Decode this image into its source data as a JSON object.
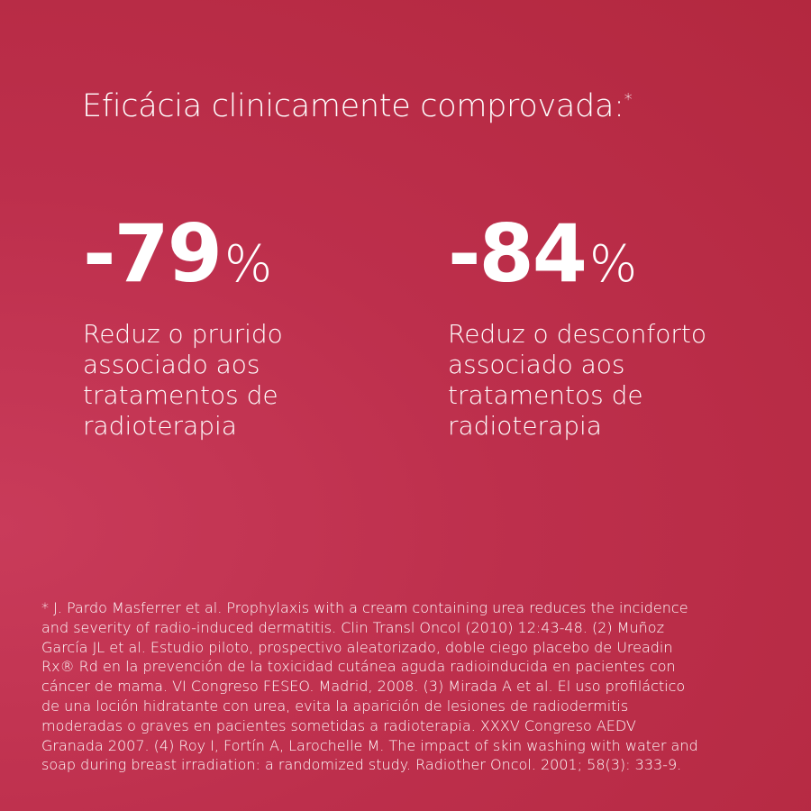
{
  "title": {
    "text": "Eficácia clinicamente comprovada:",
    "marker": "*"
  },
  "stats": [
    {
      "value": "-79",
      "unit": "%",
      "description_lines": [
        "Reduz o prurido",
        "associado aos",
        "tratamentos de",
        "radioterapia"
      ]
    },
    {
      "value": "-84",
      "unit": "%",
      "description_lines": [
        "Reduz o desconforto",
        "associado aos",
        "tratamentos de",
        "radioterapia"
      ]
    }
  ],
  "footnote_lines": [
    "* J. Pardo Masferrer et al. Prophylaxis with a cream containing urea reduces the incidence",
    "and severity of radio-induced dermatitis. Clin Transl Oncol (2010) 12:43-48. (2) Muñoz",
    "García JL et al. Estudio piloto, prospectivo aleatorizado, doble ciego placebo de Ureadin",
    "Rx® Rd en la prevención de la toxicidad cutánea aguda radioinducida en pacientes con",
    "cáncer de mama. VI Congreso FESEO. Madrid, 2008. (3) Mirada A et al. El uso profiláctico",
    "de una loción hidratante con urea, evita la aparición de lesiones de radiodermitis",
    "moderadas o graves en pacientes sometidas a radioterapia. XXXV Congreso AEDV",
    "Granada 2007. (4) Roy I, Fortín A, Larochelle M. The impact of skin washing with water and",
    "soap during breast irradiation: a randomized study. Radiother Oncol. 2001; 58(3): 333-9."
  ],
  "colors": {
    "background": "#b92d48",
    "text": "#ffffff"
  }
}
